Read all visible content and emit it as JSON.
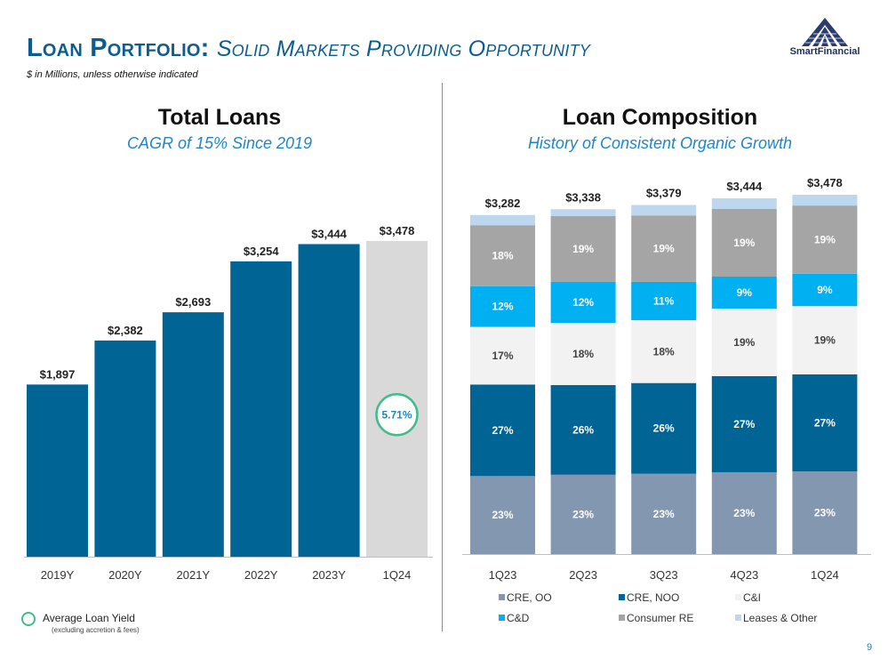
{
  "header": {
    "title_main": "Loan Portfolio:",
    "title_sub": "Solid Markets Providing Opportunity",
    "units_note": "$ in Millions, unless otherwise indicated"
  },
  "logo": {
    "text": "SmartFinancial"
  },
  "left_panel": {
    "heading": "Total Loans",
    "subheading": "CAGR of 15% Since 2019"
  },
  "right_panel": {
    "heading": "Loan Composition",
    "subheading": "History of Consistent Organic Growth"
  },
  "yield_legend": {
    "label": "Average Loan Yield",
    "note": "(excluding accretion & fees)"
  },
  "page_number": "9",
  "colors": {
    "primary_blue": "#006494",
    "title_blue": "#0b5d8f",
    "accent_blue": "#1f86c5",
    "highlight_bar": "#d9d9d9",
    "yield_circle": "#3ebd8c"
  },
  "chart_data": [
    {
      "type": "bar",
      "title": "Total Loans",
      "subtitle": "CAGR of 15% Since 2019",
      "categories": [
        "2019Y",
        "2020Y",
        "2021Y",
        "2022Y",
        "2023Y",
        "1Q24"
      ],
      "values": [
        1897,
        2382,
        2693,
        3254,
        3444,
        3478
      ],
      "value_labels": [
        "$1,897",
        "$2,382",
        "$2,693",
        "$3,254",
        "$3,444",
        "$3,478"
      ],
      "bar_colors": [
        "#006494",
        "#006494",
        "#006494",
        "#006494",
        "#006494",
        "#d9d9d9"
      ],
      "ylim": [
        0,
        3478
      ],
      "annotation": {
        "category": "1Q24",
        "label": "5.71%",
        "meaning": "Average Loan Yield"
      },
      "xlabel": "",
      "ylabel": "",
      "grid": false
    },
    {
      "type": "bar",
      "stacked": true,
      "normalized": true,
      "title": "Loan Composition",
      "subtitle": "History of Consistent Organic Growth",
      "categories": [
        "1Q23",
        "2Q23",
        "3Q23",
        "4Q23",
        "1Q24"
      ],
      "totals": [
        "$3,282",
        "$3,338",
        "$3,379",
        "$3,444",
        "$3,478"
      ],
      "series": [
        {
          "name": "CRE, OO",
          "color": "#8497b0",
          "label_color": "#ffffff",
          "values": [
            23,
            23,
            23,
            23,
            23
          ],
          "labels": [
            "23%",
            "23%",
            "23%",
            "23%",
            "23%"
          ]
        },
        {
          "name": "CRE, NOO",
          "color": "#006494",
          "label_color": "#ffffff",
          "values": [
            27,
            26,
            26,
            27,
            27
          ],
          "labels": [
            "27%",
            "26%",
            "26%",
            "27%",
            "27%"
          ]
        },
        {
          "name": "C&I",
          "color": "#f2f2f2",
          "label_color": "#404040",
          "values": [
            17,
            18,
            18,
            19,
            19
          ],
          "labels": [
            "17%",
            "18%",
            "18%",
            "19%",
            "19%"
          ]
        },
        {
          "name": "C&D",
          "color": "#00b0f0",
          "label_color": "#ffffff",
          "values": [
            12,
            12,
            11,
            9,
            9
          ],
          "labels": [
            "12%",
            "12%",
            "11%",
            "9%",
            "9%"
          ]
        },
        {
          "name": "Consumer RE",
          "color": "#a5a5a5",
          "label_color": "#ffffff",
          "values": [
            18,
            19,
            19,
            19,
            19
          ],
          "labels": [
            "18%",
            "19%",
            "19%",
            "19%",
            "19%"
          ]
        },
        {
          "name": "Leases & Other",
          "color": "#bdd7ee",
          "label_color": "#ffffff",
          "values": [
            3,
            2,
            3,
            3,
            3
          ],
          "labels": [
            "",
            "",
            "",
            "",
            ""
          ]
        }
      ],
      "legend": "bottom",
      "xlabel": "",
      "ylabel": "",
      "grid": false
    }
  ]
}
